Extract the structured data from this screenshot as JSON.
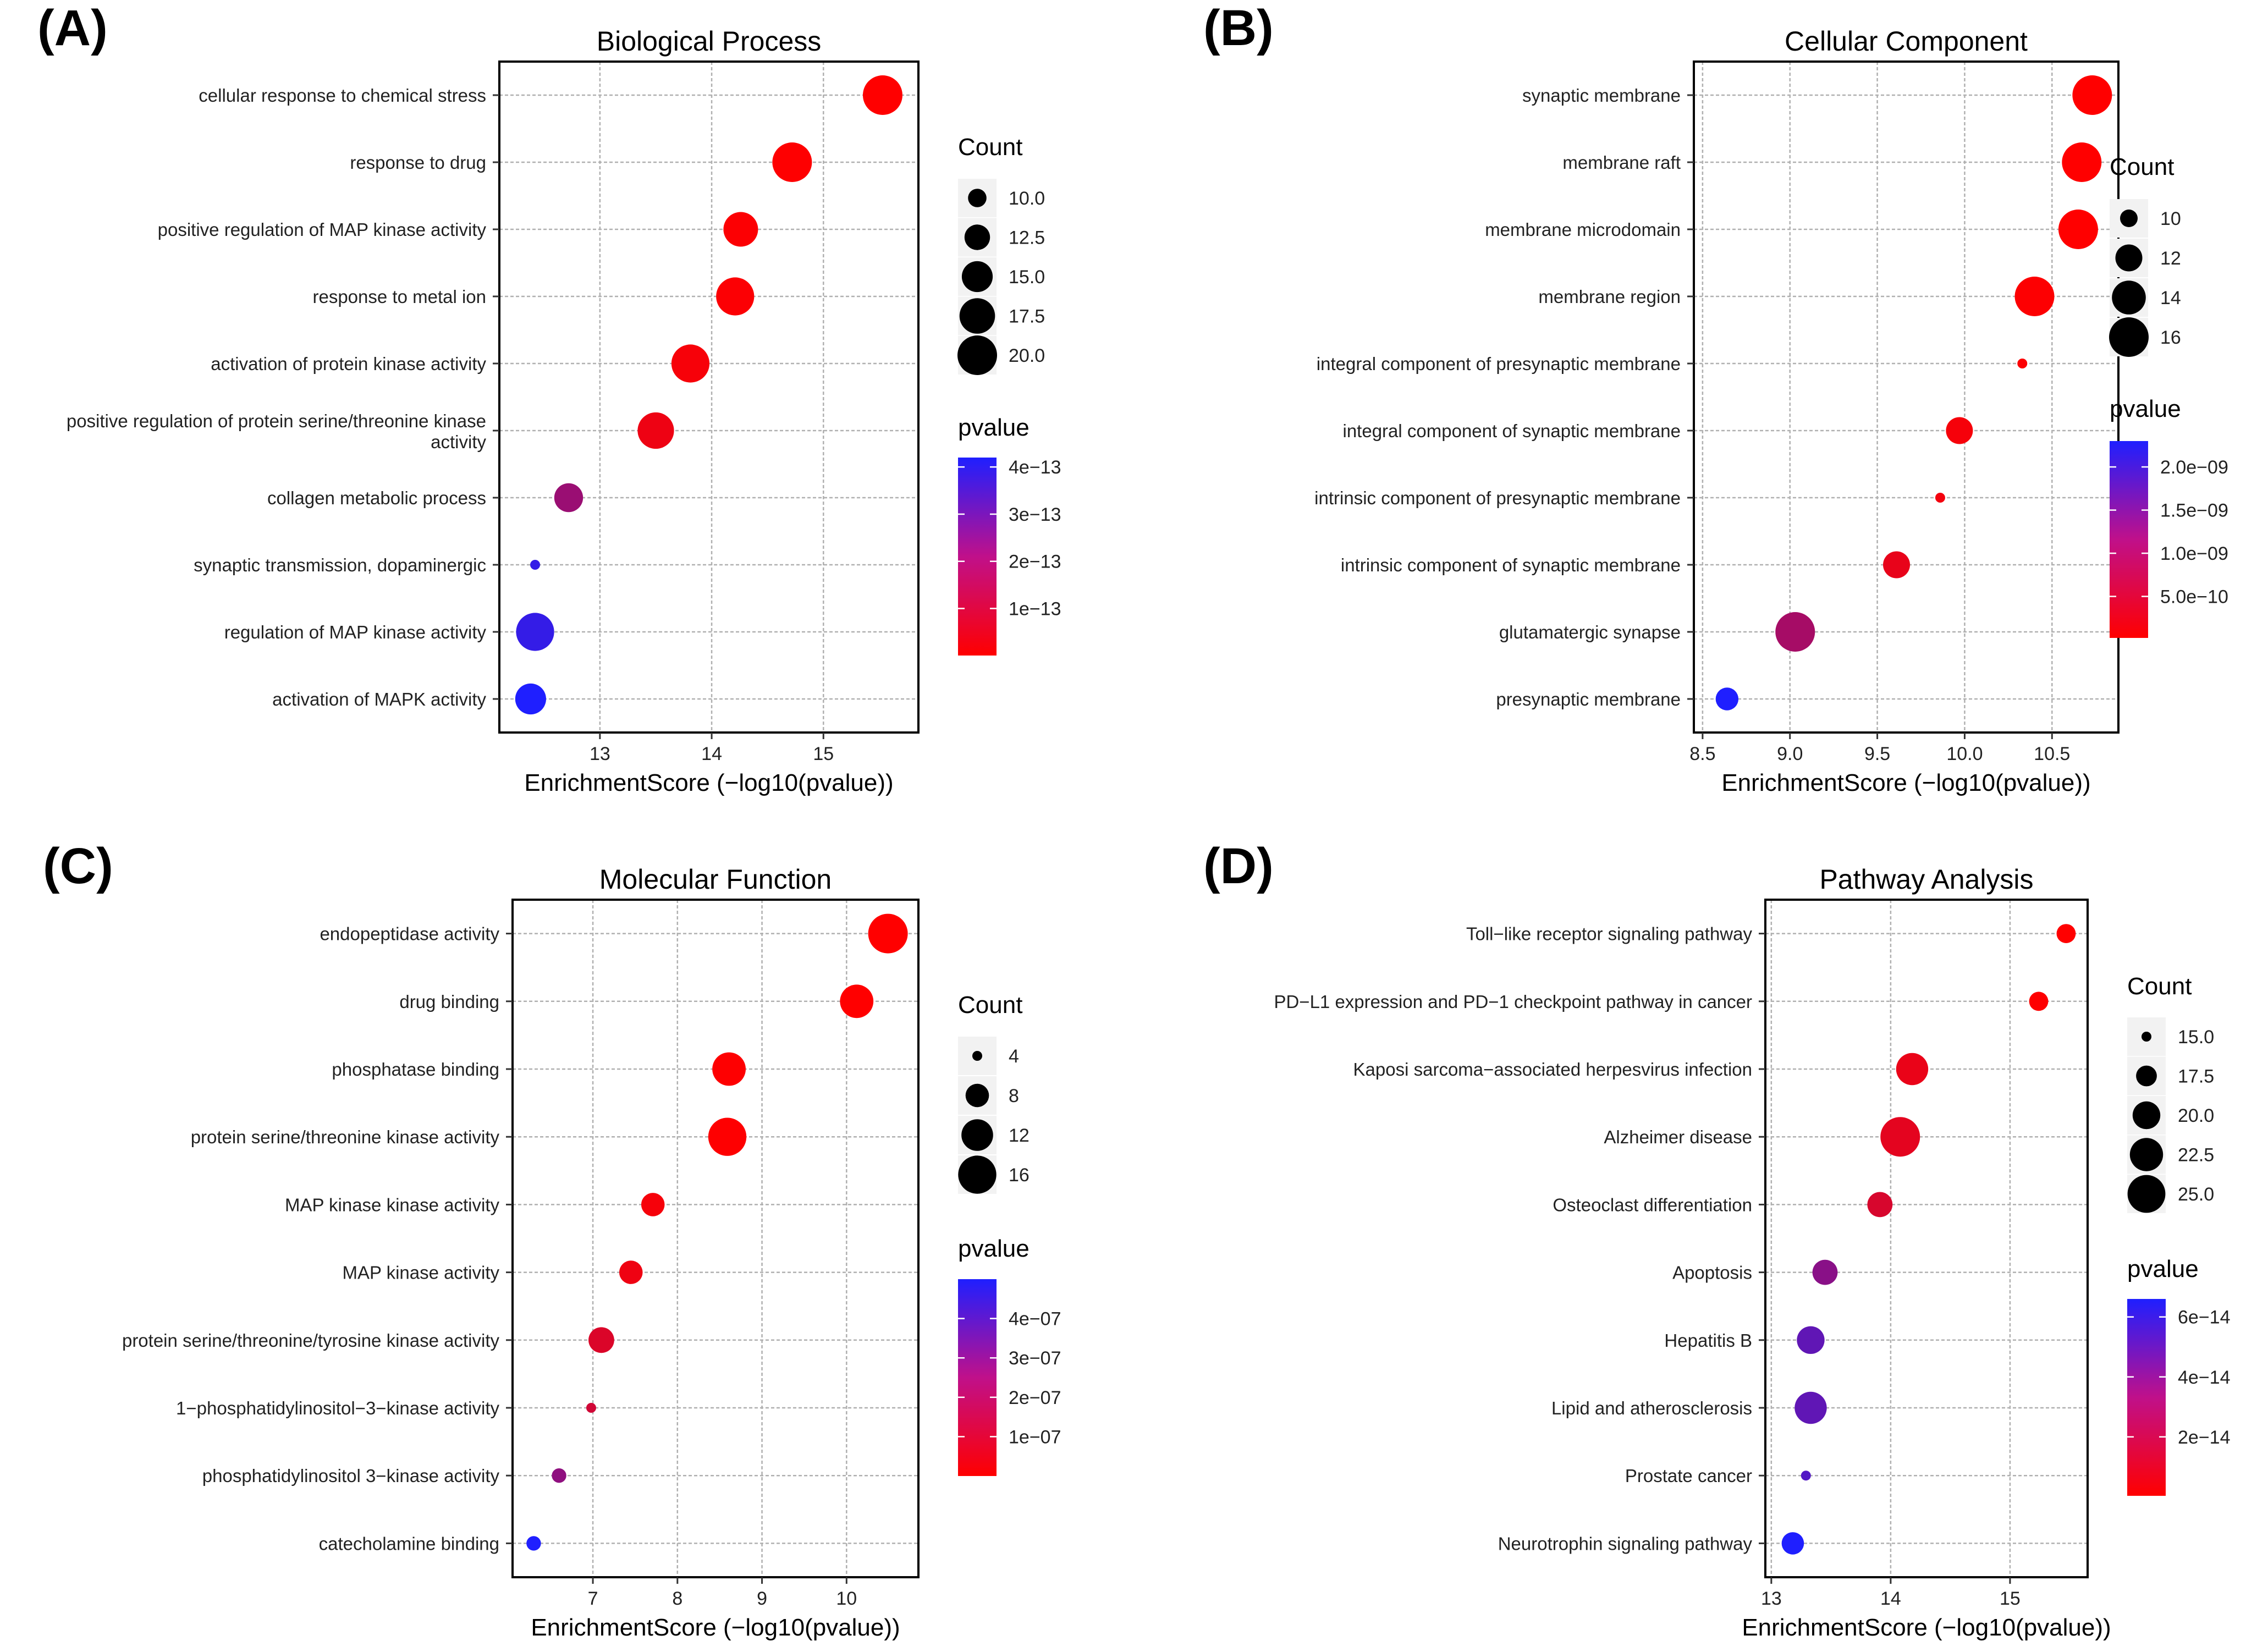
{
  "figure": {
    "colors": {
      "low_pvalue": "#ff0000",
      "high_pvalue": "#1f1fff",
      "grid": "#b0b0b0",
      "frame": "#000000"
    }
  },
  "chart_data": [
    {
      "panel_label": "(A)",
      "type": "scatter",
      "title": "Biological Process",
      "xlabel": "EnrichmentScore (−log10(pvalue))",
      "ylabel": "",
      "xlim": [
        12.1,
        15.85
      ],
      "xticks": [
        {
          "value": 13,
          "label": "13"
        },
        {
          "value": 14,
          "label": "14"
        },
        {
          "value": 15,
          "label": "15"
        }
      ],
      "grid": true,
      "categories": [
        "cellular response to chemical stress",
        "response to drug",
        "positive regulation of MAP kinase activity",
        "response to metal ion",
        "activation of protein kinase activity",
        "positive regulation of protein serine/threonine kinase\nactivity",
        "collagen metabolic process",
        "synaptic transmission, dopaminergic",
        "regulation of MAP kinase activity",
        "activation of MAPK activity"
      ],
      "points": [
        {
          "x": 15.53,
          "count": 20,
          "pvalue": 3e-16
        },
        {
          "x": 14.72,
          "count": 20,
          "pvalue": 1.9e-15
        },
        {
          "x": 14.26,
          "count": 17,
          "pvalue": 5.5e-15
        },
        {
          "x": 14.21,
          "count": 19,
          "pvalue": 6.2e-15
        },
        {
          "x": 13.81,
          "count": 19,
          "pvalue": 1.5e-14
        },
        {
          "x": 13.5,
          "count": 18,
          "pvalue": 3.2e-14
        },
        {
          "x": 12.72,
          "count": 14,
          "pvalue": 1.9e-13
        },
        {
          "x": 12.42,
          "count": 8,
          "pvalue": 3.8e-13
        },
        {
          "x": 12.42,
          "count": 19,
          "pvalue": 3.8e-13
        },
        {
          "x": 12.38,
          "count": 15,
          "pvalue": 4.2e-13
        }
      ],
      "legend": {
        "size_title": "Count",
        "size_entries": [
          {
            "value": 10,
            "label": "10.0"
          },
          {
            "value": 12.5,
            "label": "12.5"
          },
          {
            "value": 15,
            "label": "15.0"
          },
          {
            "value": 17.5,
            "label": "17.5"
          },
          {
            "value": 20,
            "label": "20.0"
          }
        ],
        "size_domain": [
          8,
          20
        ],
        "color_title": "pvalue",
        "color_domain": [
          3e-16,
          4.2e-13
        ],
        "color_ticks": [
          {
            "value": 4e-13,
            "label": "4e−13"
          },
          {
            "value": 3e-13,
            "label": "3e−13"
          },
          {
            "value": 2e-13,
            "label": "2e−13"
          },
          {
            "value": 1e-13,
            "label": "1e−13"
          }
        ],
        "placement": "right"
      }
    },
    {
      "panel_label": "(B)",
      "type": "scatter",
      "title": "Cellular Component",
      "xlabel": "EnrichmentScore (−log10(pvalue))",
      "ylabel": "",
      "xlim": [
        8.45,
        10.88
      ],
      "xticks": [
        {
          "value": 8.5,
          "label": "8.5"
        },
        {
          "value": 9.0,
          "label": "9.0"
        },
        {
          "value": 9.5,
          "label": "9.5"
        },
        {
          "value": 10.0,
          "label": "10.0"
        },
        {
          "value": 10.5,
          "label": "10.5"
        }
      ],
      "grid": true,
      "categories": [
        "synaptic membrane",
        "membrane raft",
        "membrane microdomain",
        "membrane region",
        "integral component of presynaptic membrane",
        "integral component of synaptic membrane",
        "intrinsic component of presynaptic membrane",
        "intrinsic component of synaptic membrane",
        "glutamatergic synapse",
        "presynaptic membrane"
      ],
      "points": [
        {
          "x": 10.73,
          "count": 16,
          "pvalue": 1.9e-11
        },
        {
          "x": 10.67,
          "count": 16,
          "pvalue": 2.1e-11
        },
        {
          "x": 10.65,
          "count": 16,
          "pvalue": 2.2e-11
        },
        {
          "x": 10.4,
          "count": 16,
          "pvalue": 4e-11
        },
        {
          "x": 10.33,
          "count": 9,
          "pvalue": 4.7e-11
        },
        {
          "x": 9.97,
          "count": 12,
          "pvalue": 1.1e-10
        },
        {
          "x": 9.86,
          "count": 9,
          "pvalue": 1.4e-10
        },
        {
          "x": 9.61,
          "count": 12,
          "pvalue": 2.5e-10
        },
        {
          "x": 9.03,
          "count": 16,
          "pvalue": 9.3e-10
        },
        {
          "x": 8.64,
          "count": 11,
          "pvalue": 2.3e-09
        }
      ],
      "legend": {
        "size_title": "Count",
        "size_entries": [
          {
            "value": 10,
            "label": "10"
          },
          {
            "value": 12,
            "label": "12"
          },
          {
            "value": 14,
            "label": "14"
          },
          {
            "value": 16,
            "label": "16"
          }
        ],
        "size_domain": [
          9,
          16
        ],
        "color_title": "pvalue",
        "color_domain": [
          1.9e-11,
          2.3e-09
        ],
        "color_ticks": [
          {
            "value": 2e-09,
            "label": "2.0e−09"
          },
          {
            "value": 1.5e-09,
            "label": "1.5e−09"
          },
          {
            "value": 1e-09,
            "label": "1.0e−09"
          },
          {
            "value": 5e-10,
            "label": "5.0e−10"
          }
        ],
        "placement": "right"
      }
    },
    {
      "panel_label": "(C)",
      "type": "scatter",
      "title": "Molecular Function",
      "xlabel": "EnrichmentScore (−log10(pvalue))",
      "ylabel": "",
      "xlim": [
        6.05,
        10.85
      ],
      "xticks": [
        {
          "value": 7,
          "label": "7"
        },
        {
          "value": 8,
          "label": "8"
        },
        {
          "value": 9,
          "label": "9"
        },
        {
          "value": 10,
          "label": "10"
        }
      ],
      "grid": true,
      "categories": [
        "endopeptidase activity",
        "drug binding",
        "phosphatase binding",
        "protein serine/threonine kinase activity",
        "MAP kinase kinase activity",
        "MAP kinase activity",
        "protein serine/threonine/tyrosine kinase activity",
        "1−phosphatidylinositol−3−kinase activity",
        "phosphatidylinositol 3−kinase activity",
        "catecholamine binding"
      ],
      "points": [
        {
          "x": 10.49,
          "count": 17,
          "pvalue": 3.2e-11
        },
        {
          "x": 10.12,
          "count": 13,
          "pvalue": 7.6e-11
        },
        {
          "x": 8.61,
          "count": 13,
          "pvalue": 2.5e-09
        },
        {
          "x": 8.59,
          "count": 16,
          "pvalue": 2.6e-09
        },
        {
          "x": 7.71,
          "count": 8,
          "pvalue": 2e-08
        },
        {
          "x": 7.45,
          "count": 8,
          "pvalue": 3.5e-08
        },
        {
          "x": 7.1,
          "count": 9,
          "pvalue": 8e-08
        },
        {
          "x": 6.98,
          "count": 4,
          "pvalue": 1.05e-07
        },
        {
          "x": 6.6,
          "count": 5,
          "pvalue": 2.5e-07
        },
        {
          "x": 6.3,
          "count": 5,
          "pvalue": 5e-07
        }
      ],
      "legend": {
        "size_title": "Count",
        "size_entries": [
          {
            "value": 4,
            "label": "4"
          },
          {
            "value": 8,
            "label": "8"
          },
          {
            "value": 12,
            "label": "12"
          },
          {
            "value": 16,
            "label": "16"
          }
        ],
        "size_domain": [
          4,
          17
        ],
        "color_title": "pvalue",
        "color_domain": [
          3.2e-11,
          5e-07
        ],
        "color_ticks": [
          {
            "value": 4e-07,
            "label": "4e−07"
          },
          {
            "value": 3e-07,
            "label": "3e−07"
          },
          {
            "value": 2e-07,
            "label": "2e−07"
          },
          {
            "value": 1e-07,
            "label": "1e−07"
          }
        ],
        "placement": "right"
      }
    },
    {
      "panel_label": "(D)",
      "type": "scatter",
      "title": "Pathway Analysis",
      "xlabel": "EnrichmentScore (−log10(pvalue))",
      "ylabel": "",
      "xlim": [
        12.95,
        15.65
      ],
      "xticks": [
        {
          "value": 13,
          "label": "13"
        },
        {
          "value": 14,
          "label": "14"
        },
        {
          "value": 15,
          "label": "15"
        }
      ],
      "grid": true,
      "categories": [
        "Toll−like receptor signaling pathway",
        "PD−L1 expression and PD−1 checkpoint pathway in cancer",
        "Kaposi sarcoma−associated herpesvirus infection",
        "Alzheimer disease",
        "Osteoclast differentiation",
        "Apoptosis",
        "Hepatitis B",
        "Lipid and atherosclerosis",
        "Prostate cancer",
        "Neurotrophin signaling pathway"
      ],
      "points": [
        {
          "x": 15.47,
          "count": 17,
          "pvalue": 3.4e-16
        },
        {
          "x": 15.24,
          "count": 17,
          "pvalue": 5.8e-16
        },
        {
          "x": 14.18,
          "count": 22,
          "pvalue": 6.6e-15
        },
        {
          "x": 14.08,
          "count": 26,
          "pvalue": 8.3e-15
        },
        {
          "x": 13.91,
          "count": 19,
          "pvalue": 1.2e-14
        },
        {
          "x": 13.45,
          "count": 19,
          "pvalue": 3.5e-14
        },
        {
          "x": 13.33,
          "count": 20,
          "pvalue": 4.7e-14
        },
        {
          "x": 13.33,
          "count": 22,
          "pvalue": 4.7e-14
        },
        {
          "x": 13.29,
          "count": 15,
          "pvalue": 5.1e-14
        },
        {
          "x": 13.18,
          "count": 18,
          "pvalue": 6.6e-14
        }
      ],
      "legend": {
        "size_title": "Count",
        "size_entries": [
          {
            "value": 15,
            "label": "15.0"
          },
          {
            "value": 17.5,
            "label": "17.5"
          },
          {
            "value": 20,
            "label": "20.0"
          },
          {
            "value": 22.5,
            "label": "22.5"
          },
          {
            "value": 25,
            "label": "25.0"
          }
        ],
        "size_domain": [
          15,
          26
        ],
        "color_title": "pvalue",
        "color_domain": [
          3.4e-16,
          6.6e-14
        ],
        "color_ticks": [
          {
            "value": 6e-14,
            "label": "6e−14"
          },
          {
            "value": 4e-14,
            "label": "4e−14"
          },
          {
            "value": 2e-14,
            "label": "2e−14"
          }
        ],
        "placement": "right"
      }
    }
  ]
}
